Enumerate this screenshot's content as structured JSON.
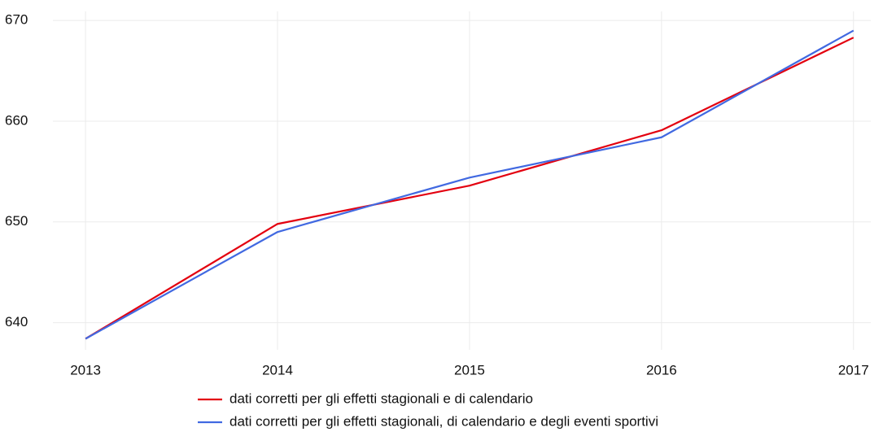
{
  "chart_data": {
    "type": "line",
    "x": [
      2013,
      2014,
      2015,
      2016,
      2017
    ],
    "series": [
      {
        "name": "dati corretti per gli effetti stagionali e di calendario",
        "color": "#e3000f",
        "values": [
          638.4,
          649.8,
          653.6,
          659.1,
          668.3
        ]
      },
      {
        "name": "dati corretti per gli effetti stagionali, di calendario e degli eventi sportivi",
        "color": "#4169e1",
        "values": [
          638.4,
          649.0,
          654.4,
          658.4,
          669.0
        ]
      }
    ],
    "xlim": [
      2012.83,
      2017.09
    ],
    "xticks": [
      2013,
      2014,
      2015,
      2016,
      2017
    ],
    "ylim": [
      637.3,
      670.9
    ],
    "yticks": [
      640,
      650,
      660,
      670
    ],
    "grid": true,
    "legend": "bottom"
  }
}
